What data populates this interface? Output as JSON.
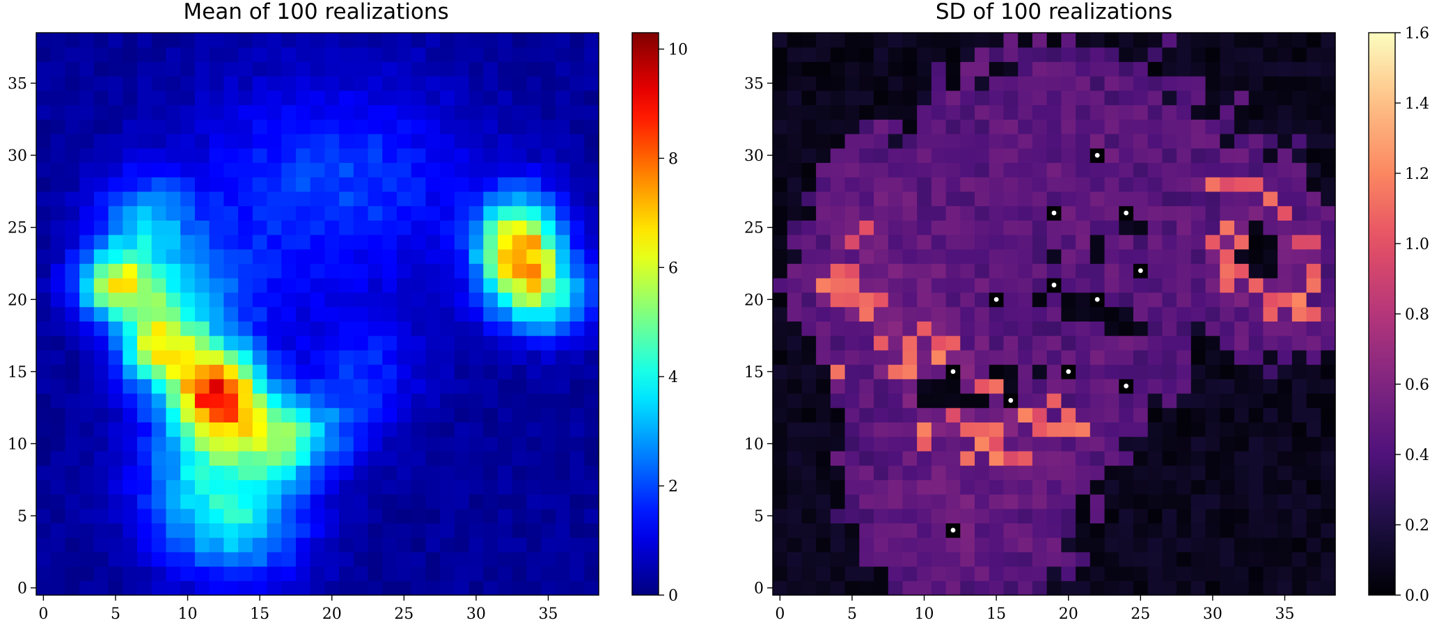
{
  "chart_data": [
    {
      "type": "heatmap",
      "title": "Mean of 100 realizations",
      "grid_size": 39,
      "xlim": [
        -0.5,
        38.5
      ],
      "ylim": [
        -0.5,
        38.5
      ],
      "xticks": [
        0,
        5,
        10,
        15,
        20,
        25,
        30,
        35
      ],
      "yticks": [
        0,
        5,
        10,
        15,
        20,
        25,
        30,
        35
      ],
      "xtick_labels": [
        "0",
        "5",
        "10",
        "15",
        "20",
        "25",
        "30",
        "35"
      ],
      "ytick_labels": [
        "0",
        "5",
        "10",
        "15",
        "20",
        "25",
        "30",
        "35"
      ],
      "colormap": "jet",
      "colorbar": {
        "min": 0,
        "max": 10.3,
        "ticks": [
          0,
          2,
          4,
          6,
          8,
          10
        ],
        "tick_labels": [
          "0",
          "2",
          "4",
          "6",
          "8",
          "10"
        ]
      },
      "blobs": [
        {
          "x": 12,
          "y": 13.5,
          "sx": 2.2,
          "sy": 2.2,
          "amp": 7.5
        },
        {
          "x": 8,
          "y": 17,
          "sx": 2.0,
          "sy": 2.0,
          "amp": 5.0
        },
        {
          "x": 16.5,
          "y": 10.5,
          "sx": 3.0,
          "sy": 2.0,
          "amp": 4.0
        },
        {
          "x": 14,
          "y": 5,
          "sx": 3.2,
          "sy": 3.2,
          "amp": 3.0
        },
        {
          "x": 5,
          "y": 21,
          "sx": 2.0,
          "sy": 1.6,
          "amp": 5.0
        },
        {
          "x": 7,
          "y": 25,
          "sx": 2.5,
          "sy": 2.5,
          "amp": 2.6
        },
        {
          "x": 11,
          "y": 20,
          "sx": 3.5,
          "sy": 3.0,
          "amp": 1.8
        },
        {
          "x": 33,
          "y": 23.5,
          "sx": 2.0,
          "sy": 2.5,
          "amp": 7.0
        },
        {
          "x": 35,
          "y": 20,
          "sx": 2.5,
          "sy": 2.0,
          "amp": 3.0
        },
        {
          "x": 20,
          "y": 28,
          "sx": 7.0,
          "sy": 5.0,
          "amp": 1.7
        },
        {
          "x": 22,
          "y": 15,
          "sx": 3.0,
          "sy": 3.0,
          "amp": 1.4
        },
        {
          "x": 10,
          "y": 8,
          "sx": 3.0,
          "sy": 4.0,
          "amp": 2.0
        }
      ],
      "baseline": 0.25,
      "noise": 0.45
    },
    {
      "type": "heatmap",
      "title": "SD of 100 realizations",
      "grid_size": 39,
      "xlim": [
        -0.5,
        38.5
      ],
      "ylim": [
        -0.5,
        38.5
      ],
      "xticks": [
        0,
        5,
        10,
        15,
        20,
        25,
        30,
        35
      ],
      "yticks": [
        0,
        5,
        10,
        15,
        20,
        25,
        30,
        35
      ],
      "xtick_labels": [
        "0",
        "5",
        "10",
        "15",
        "20",
        "25",
        "30",
        "35"
      ],
      "ytick_labels": [
        "0",
        "5",
        "10",
        "15",
        "20",
        "25",
        "30",
        "35"
      ],
      "colormap": "magma",
      "colorbar": {
        "min": 0,
        "max": 1.6,
        "ticks": [
          0.0,
          0.2,
          0.4,
          0.6,
          0.8,
          1.0,
          1.2,
          1.4,
          1.6
        ],
        "tick_labels": [
          "0.0",
          "0.2",
          "0.4",
          "0.6",
          "0.8",
          "1.0",
          "1.2",
          "1.4",
          "1.6"
        ]
      },
      "mask_from": 0,
      "mask_threshold": 0.55,
      "baseline": 0.42,
      "noise": 0.1,
      "hot_cells": [
        [
          3,
          21
        ],
        [
          4,
          21
        ],
        [
          5,
          21
        ],
        [
          4,
          20
        ],
        [
          5,
          20
        ],
        [
          6,
          20
        ],
        [
          7,
          20
        ],
        [
          6,
          19
        ],
        [
          4,
          22
        ],
        [
          5,
          22
        ],
        [
          9,
          16
        ],
        [
          8,
          15
        ],
        [
          9,
          15
        ],
        [
          10,
          14
        ],
        [
          11,
          16
        ],
        [
          10,
          18
        ],
        [
          11,
          17
        ],
        [
          12,
          17
        ],
        [
          9,
          17
        ],
        [
          13,
          11
        ],
        [
          14,
          11
        ],
        [
          15,
          11
        ],
        [
          14,
          10
        ],
        [
          15,
          10
        ],
        [
          16,
          9
        ],
        [
          17,
          9
        ],
        [
          15,
          9
        ],
        [
          13,
          9
        ],
        [
          17,
          12
        ],
        [
          18,
          12
        ],
        [
          19,
          13
        ],
        [
          20,
          12
        ],
        [
          19,
          11
        ],
        [
          20,
          11
        ],
        [
          21,
          11
        ],
        [
          18,
          11
        ],
        [
          10,
          11
        ],
        [
          10,
          10
        ],
        [
          12,
          12
        ],
        [
          30,
          28
        ],
        [
          31,
          28
        ],
        [
          32,
          28
        ],
        [
          33,
          28
        ],
        [
          34,
          27
        ],
        [
          35,
          26
        ],
        [
          31,
          25
        ],
        [
          32,
          24
        ],
        [
          31,
          23
        ],
        [
          32,
          22
        ],
        [
          33,
          21
        ],
        [
          34,
          20
        ],
        [
          35,
          20
        ],
        [
          36,
          20
        ],
        [
          37,
          21
        ],
        [
          37,
          22
        ],
        [
          36,
          24
        ],
        [
          37,
          24
        ],
        [
          36,
          19
        ],
        [
          37,
          19
        ],
        [
          34,
          19
        ],
        [
          31,
          21
        ],
        [
          31,
          22
        ],
        [
          30,
          24
        ],
        [
          5,
          24
        ],
        [
          6,
          25
        ],
        [
          15,
          14
        ],
        [
          14,
          14
        ],
        [
          7,
          17
        ],
        [
          4,
          15
        ]
      ],
      "low_cells": [
        [
          10,
          14
        ],
        [
          11,
          14
        ],
        [
          12,
          14
        ],
        [
          10,
          13
        ],
        [
          11,
          13
        ],
        [
          12,
          13
        ],
        [
          13,
          13
        ],
        [
          14,
          13
        ],
        [
          15,
          15
        ],
        [
          16,
          15
        ],
        [
          18,
          15
        ],
        [
          20,
          20
        ],
        [
          21,
          20
        ],
        [
          22,
          20
        ],
        [
          20,
          19
        ],
        [
          21,
          19
        ],
        [
          22,
          19
        ],
        [
          23,
          19
        ],
        [
          24,
          19
        ],
        [
          24,
          18
        ],
        [
          25,
          18
        ],
        [
          23,
          18
        ],
        [
          19,
          23
        ],
        [
          22,
          23
        ],
        [
          22,
          24
        ],
        [
          24,
          25
        ],
        [
          25,
          25
        ],
        [
          16,
          14
        ],
        [
          18,
          20
        ],
        [
          33,
          24
        ],
        [
          34,
          24
        ],
        [
          33,
          23
        ],
        [
          34,
          23
        ],
        [
          33,
          22
        ],
        [
          34,
          22
        ],
        [
          32,
          23
        ],
        [
          33,
          25
        ]
      ],
      "markers": [
        {
          "x": 12,
          "y": 4
        },
        {
          "x": 12,
          "y": 15
        },
        {
          "x": 16,
          "y": 13
        },
        {
          "x": 15,
          "y": 20
        },
        {
          "x": 19,
          "y": 21
        },
        {
          "x": 20,
          "y": 15
        },
        {
          "x": 22,
          "y": 20
        },
        {
          "x": 24,
          "y": 14
        },
        {
          "x": 25,
          "y": 22
        },
        {
          "x": 19,
          "y": 26
        },
        {
          "x": 24,
          "y": 26
        },
        {
          "x": 22,
          "y": 30
        }
      ]
    }
  ]
}
